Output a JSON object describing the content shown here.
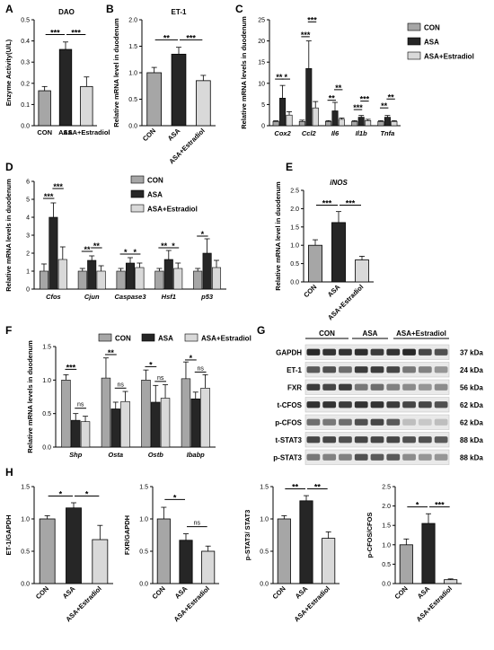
{
  "colors": {
    "con": "#a6a6a6",
    "asa": "#262626",
    "est": "#d9d9d9"
  },
  "legend": {
    "items": [
      {
        "label": "CON",
        "color": "#a6a6a6"
      },
      {
        "label": "ASA",
        "color": "#262626"
      },
      {
        "label": "ASA+Estradiol",
        "color": "#d9d9d9"
      }
    ]
  },
  "western_blot": {
    "groups": [
      "CON",
      "ASA",
      "ASA+Estradiol"
    ],
    "rows": [
      {
        "protein": "GAPDH",
        "size": "37 kDa"
      },
      {
        "protein": "ET-1",
        "size": "24 kDa"
      },
      {
        "protein": "FXR",
        "size": "56 kDa"
      },
      {
        "protein": "t-CFOS",
        "size": "62 kDa"
      },
      {
        "protein": "p-CFOS",
        "size": "62 kDa"
      },
      {
        "protein": "t-STAT3",
        "size": "88 kDa"
      },
      {
        "protein": "p-STAT3",
        "size": "88 kDa"
      }
    ]
  },
  "chart_data": [
    {
      "panel": "A",
      "type": "bar",
      "title": "DAO",
      "ylabel": "Enzyme Activity(U/L)",
      "categories": [
        "CON",
        "ASA",
        "ASA+Estradiol"
      ],
      "values": [
        0.165,
        0.36,
        0.185
      ],
      "errors": [
        0.02,
        0.035,
        0.045
      ],
      "ylim": [
        0,
        0.5
      ],
      "yticks": [
        "0.0",
        "0.1",
        "0.2",
        "0.3",
        "0.4",
        "0.5"
      ],
      "sig": [
        {
          "a": 0,
          "b": 1,
          "label": "***"
        },
        {
          "a": 1,
          "b": 2,
          "label": "***"
        }
      ]
    },
    {
      "panel": "B",
      "type": "bar",
      "title": "ET-1",
      "ylabel": "Relative mRNA level in duodenum",
      "categories": [
        "CON",
        "ASA",
        "ASA+Estradiol"
      ],
      "values": [
        1.0,
        1.35,
        0.85
      ],
      "errors": [
        0.1,
        0.13,
        0.1
      ],
      "ylim": [
        0,
        2.0
      ],
      "yticks": [
        "0.0",
        "0.5",
        "1.0",
        "1.5",
        "2.0"
      ],
      "sig": [
        {
          "a": 0,
          "b": 1,
          "label": "**"
        },
        {
          "a": 1,
          "b": 2,
          "label": "***"
        }
      ]
    },
    {
      "panel": "C",
      "type": "bar",
      "ylabel": "Relative mRNA levels in duodenum",
      "categories": [
        "Cox2",
        "Ccl2",
        "Il6",
        "Il1b",
        "Tnfa"
      ],
      "series": [
        {
          "name": "CON",
          "values": [
            1.0,
            1.0,
            1.0,
            1.0,
            1.0
          ],
          "errors": [
            0.15,
            0.3,
            0.2,
            0.2,
            0.2
          ]
        },
        {
          "name": "ASA",
          "values": [
            6.5,
            13.5,
            3.5,
            2.0,
            2.0
          ],
          "errors": [
            3.0,
            6.5,
            2.0,
            0.4,
            0.4
          ]
        },
        {
          "name": "ASA+Estradiol",
          "values": [
            2.5,
            4.2,
            1.5,
            1.2,
            1.0
          ],
          "errors": [
            0.8,
            1.5,
            0.3,
            0.3,
            0.2
          ]
        }
      ],
      "ylim": [
        0,
        25
      ],
      "yticks": [
        "0",
        "5",
        "10",
        "15",
        "20",
        "25"
      ],
      "sig": [
        {
          "c": 0,
          "a": 0,
          "b": 1,
          "label": "**",
          "y": 11
        },
        {
          "c": 0,
          "a": 1,
          "b": 2,
          "label": "*",
          "y": 11
        },
        {
          "c": 1,
          "a": 0,
          "b": 1,
          "label": "***",
          "y": 21
        },
        {
          "c": 1,
          "a": 1,
          "b": 2,
          "label": "***",
          "y": 24.5
        },
        {
          "c": 2,
          "a": 0,
          "b": 1,
          "label": "**",
          "y": 6
        },
        {
          "c": 2,
          "a": 1,
          "b": 2,
          "label": "**",
          "y": 8.5
        },
        {
          "c": 3,
          "a": 0,
          "b": 1,
          "label": "***",
          "y": 3.8
        },
        {
          "c": 3,
          "a": 1,
          "b": 2,
          "label": "***",
          "y": 5.8
        },
        {
          "c": 4,
          "a": 0,
          "b": 1,
          "label": "**",
          "y": 4.2
        },
        {
          "c": 4,
          "a": 1,
          "b": 2,
          "label": "**",
          "y": 6.3
        }
      ]
    },
    {
      "panel": "D",
      "type": "bar",
      "ylabel": "Relative mRNA levels in duodenum",
      "categories": [
        "Cfos",
        "Cjun",
        "Caspase3",
        "Hsf1",
        "p53"
      ],
      "series": [
        {
          "name": "CON",
          "values": [
            1.0,
            1.0,
            1.0,
            1.0,
            1.0
          ],
          "errors": [
            0.4,
            0.15,
            0.15,
            0.15,
            0.15
          ]
        },
        {
          "name": "ASA",
          "values": [
            4.0,
            1.6,
            1.45,
            1.65,
            2.0
          ],
          "errors": [
            0.8,
            0.25,
            0.3,
            0.5,
            0.8
          ]
        },
        {
          "name": "ASA+Estradiol",
          "values": [
            1.65,
            1.0,
            1.2,
            1.15,
            1.2
          ],
          "errors": [
            0.7,
            0.3,
            0.25,
            0.3,
            0.4
          ]
        }
      ],
      "ylim": [
        0,
        6
      ],
      "yticks": [
        "0",
        "1",
        "2",
        "3",
        "4",
        "5",
        "6"
      ],
      "sig": [
        {
          "c": 0,
          "a": 0,
          "b": 1,
          "label": "***",
          "y": 5.05
        },
        {
          "c": 0,
          "a": 1,
          "b": 2,
          "label": "***",
          "y": 5.6
        },
        {
          "c": 1,
          "a": 0,
          "b": 1,
          "label": "**",
          "y": 2.1
        },
        {
          "c": 1,
          "a": 1,
          "b": 2,
          "label": "**",
          "y": 2.3
        },
        {
          "c": 2,
          "a": 0,
          "b": 1,
          "label": "*",
          "y": 1.95
        },
        {
          "c": 2,
          "a": 1,
          "b": 2,
          "label": "*",
          "y": 1.95
        },
        {
          "c": 3,
          "a": 0,
          "b": 1,
          "label": "**",
          "y": 2.3
        },
        {
          "c": 3,
          "a": 1,
          "b": 2,
          "label": "*",
          "y": 2.3
        },
        {
          "c": 4,
          "a": 0,
          "b": 1,
          "label": "*",
          "y": 2.95
        }
      ]
    },
    {
      "panel": "E",
      "type": "bar",
      "title": "iNOS",
      "ylabel": "Relative mRNA level in duodenum",
      "categories": [
        "CON",
        "ASA",
        "ASA+Estradiol"
      ],
      "values": [
        1.0,
        1.62,
        0.6
      ],
      "errors": [
        0.15,
        0.3,
        0.1
      ],
      "ylim": [
        0,
        2.5
      ],
      "yticks": [
        "0.0",
        "0.5",
        "1.0",
        "1.5",
        "2.0",
        "2.5"
      ],
      "sig": [
        {
          "a": 0,
          "b": 1,
          "label": "***"
        },
        {
          "a": 1,
          "b": 2,
          "label": "***"
        }
      ]
    },
    {
      "panel": "F",
      "type": "bar",
      "ylabel": "Relative mRNA levels in duodenum",
      "categories": [
        "Shp",
        "Osta",
        "Ostb",
        "Ibabp"
      ],
      "series": [
        {
          "name": "CON",
          "values": [
            1.0,
            1.03,
            1.0,
            1.02
          ],
          "errors": [
            0.08,
            0.3,
            0.15,
            0.25
          ]
        },
        {
          "name": "ASA",
          "values": [
            0.4,
            0.57,
            0.67,
            0.72
          ],
          "errors": [
            0.1,
            0.1,
            0.25,
            0.1
          ]
        },
        {
          "name": "ASA+Estradiol",
          "values": [
            0.38,
            0.68,
            0.73,
            0.88
          ],
          "errors": [
            0.08,
            0.15,
            0.2,
            0.2
          ]
        }
      ],
      "ylim": [
        0,
        1.5
      ],
      "yticks": [
        "0.0",
        "0.5",
        "1.0",
        "1.5"
      ],
      "sig": [
        {
          "c": 0,
          "a": 0,
          "b": 1,
          "label": "***",
          "y": 1.16
        },
        {
          "c": 0,
          "a": 1,
          "b": 2,
          "label": "ns",
          "y": 0.58
        },
        {
          "c": 1,
          "a": 0,
          "b": 1,
          "label": "**",
          "y": 1.38
        },
        {
          "c": 1,
          "a": 1,
          "b": 2,
          "label": "ns",
          "y": 0.88
        },
        {
          "c": 2,
          "a": 0,
          "b": 1,
          "label": "*",
          "y": 1.2
        },
        {
          "c": 2,
          "a": 1,
          "b": 2,
          "label": "ns",
          "y": 0.98
        },
        {
          "c": 3,
          "a": 0,
          "b": 1,
          "label": "*",
          "y": 1.3
        },
        {
          "c": 3,
          "a": 1,
          "b": 2,
          "label": "ns",
          "y": 1.12
        }
      ]
    },
    {
      "panel": "H",
      "type": "bar",
      "ylabel": "ET-1/GAPDH",
      "categories": [
        "CON",
        "ASA",
        "ASA+Estradiol"
      ],
      "values": [
        1.0,
        1.17,
        0.68
      ],
      "errors": [
        0.05,
        0.08,
        0.22
      ],
      "ylim": [
        0,
        1.5
      ],
      "yticks": [
        "0.0",
        "0.5",
        "1.0",
        "1.5"
      ],
      "sig": [
        {
          "a": 0,
          "b": 1,
          "label": "*"
        },
        {
          "a": 1,
          "b": 2,
          "label": "*"
        }
      ]
    },
    {
      "type": "bar",
      "ylabel": "FXR/GAPDH",
      "categories": [
        "CON",
        "ASA",
        "ASA+Estradiol"
      ],
      "values": [
        1.0,
        0.67,
        0.5
      ],
      "errors": [
        0.18,
        0.1,
        0.08
      ],
      "ylim": [
        0,
        1.5
      ],
      "yticks": [
        "0.0",
        "0.5",
        "1.0",
        "1.5"
      ],
      "sig": [
        {
          "a": 0,
          "b": 1,
          "label": "*",
          "y": 1.3
        },
        {
          "a": 1,
          "b": 2,
          "label": "ns",
          "y": 0.88
        }
      ]
    },
    {
      "type": "bar",
      "ylabel": "p-STAT3/ STAT3",
      "categories": [
        "CON",
        "ASA",
        "ASA+Estradiol"
      ],
      "values": [
        1.0,
        1.28,
        0.7
      ],
      "errors": [
        0.05,
        0.08,
        0.1
      ],
      "ylim": [
        0,
        1.5
      ],
      "yticks": [
        "0.0",
        "0.5",
        "1.0",
        "1.5"
      ],
      "sig": [
        {
          "a": 0,
          "b": 1,
          "label": "**"
        },
        {
          "a": 1,
          "b": 2,
          "label": "**"
        }
      ]
    },
    {
      "type": "bar",
      "ylabel": "p-CFOS/CFOS",
      "categories": [
        "CON",
        "ASA",
        "ASA+Estradiol"
      ],
      "values": [
        1.0,
        1.55,
        0.1
      ],
      "errors": [
        0.15,
        0.25,
        0.02
      ],
      "ylim": [
        0,
        2.5
      ],
      "yticks": [
        "0.0",
        "0.5",
        "1.0",
        "1.5",
        "2.0",
        "2.5"
      ],
      "sig": [
        {
          "a": 0,
          "b": 1,
          "label": "*"
        },
        {
          "a": 1,
          "b": 2,
          "label": "***"
        }
      ]
    }
  ]
}
